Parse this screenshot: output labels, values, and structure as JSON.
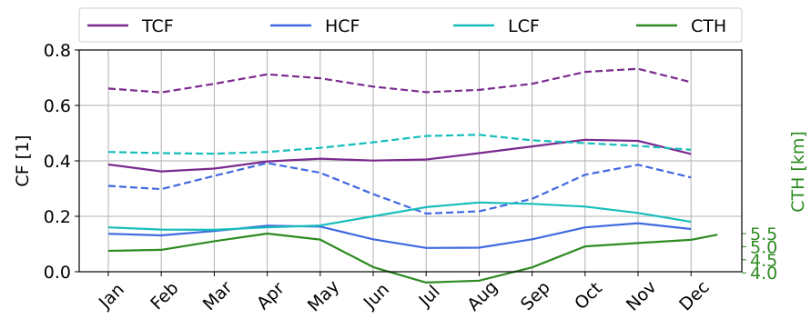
{
  "chart_data": {
    "type": "line",
    "categories": [
      "Jan",
      "Feb",
      "Mar",
      "Apr",
      "May",
      "Jun",
      "Jul",
      "Aug",
      "Sep",
      "Oct",
      "Nov",
      "Dec"
    ],
    "title": "",
    "xlabel": "",
    "ylabel": "CF [1]",
    "ylabel_right": "CTH [km]",
    "ylim": [
      0,
      0.8
    ],
    "ylim_right": [
      3.45,
      5.6
    ],
    "yticks": [
      0.0,
      0.2,
      0.4,
      0.6,
      0.8
    ],
    "yticks_right": [
      4.0,
      4.5,
      5.0,
      5.5
    ],
    "grid": true,
    "legend_position": "top",
    "colors": {
      "TCF": "#7b2a8e",
      "HCF": "#4169e1",
      "LCF": "#17bebb",
      "CTH": "#2e8b22",
      "right_axis": "#2e8b22"
    },
    "legend": [
      {
        "name": "TCF",
        "color": "#7b2a8e"
      },
      {
        "name": "HCF",
        "color": "#4169e1"
      },
      {
        "name": "LCF",
        "color": "#17bebb"
      },
      {
        "name": "CTH",
        "color": "#2e8b22"
      }
    ],
    "series": [
      {
        "name": "TCF",
        "color": "#7b2a8e",
        "style": "solid",
        "axis": "left",
        "values": [
          0.387,
          0.362,
          0.372,
          0.398,
          0.408,
          0.401,
          0.405,
          0.428,
          0.452,
          0.476,
          0.472,
          0.425
        ]
      },
      {
        "name": "TCF",
        "color": "#7b2a8e",
        "style": "dashed",
        "axis": "left",
        "values": [
          0.661,
          0.647,
          0.678,
          0.712,
          0.698,
          0.668,
          0.648,
          0.656,
          0.678,
          0.721,
          0.732,
          0.684
        ]
      },
      {
        "name": "HCF",
        "color": "#4169e1",
        "style": "solid",
        "axis": "left",
        "values": [
          0.137,
          0.131,
          0.147,
          0.166,
          0.163,
          0.117,
          0.086,
          0.087,
          0.117,
          0.16,
          0.175,
          0.154
        ]
      },
      {
        "name": "HCF",
        "color": "#4169e1",
        "style": "dashed",
        "axis": "left",
        "values": [
          0.31,
          0.298,
          0.346,
          0.392,
          0.357,
          0.28,
          0.21,
          0.218,
          0.263,
          0.35,
          0.386,
          0.34
        ]
      },
      {
        "name": "LCF",
        "color": "#17bebb",
        "style": "solid",
        "axis": "left",
        "values": [
          0.16,
          0.152,
          0.151,
          0.16,
          0.167,
          0.2,
          0.233,
          0.25,
          0.245,
          0.235,
          0.212,
          0.18
        ]
      },
      {
        "name": "LCF",
        "color": "#17bebb",
        "style": "dashed",
        "axis": "left",
        "values": [
          0.432,
          0.428,
          0.426,
          0.432,
          0.447,
          0.467,
          0.49,
          0.494,
          0.474,
          0.464,
          0.454,
          0.44
        ]
      },
      {
        "name": "CTH",
        "color": "#2e8b22",
        "style": "solid",
        "axis": "right",
        "x": [
          0,
          1,
          2,
          3,
          4,
          5,
          6,
          7,
          8,
          9,
          10,
          11,
          11.5
        ],
        "values": [
          4.84,
          4.88,
          5.21,
          5.5,
          5.27,
          4.22,
          3.63,
          3.7,
          4.21,
          5.01,
          5.14,
          5.26,
          5.46
        ]
      }
    ]
  }
}
